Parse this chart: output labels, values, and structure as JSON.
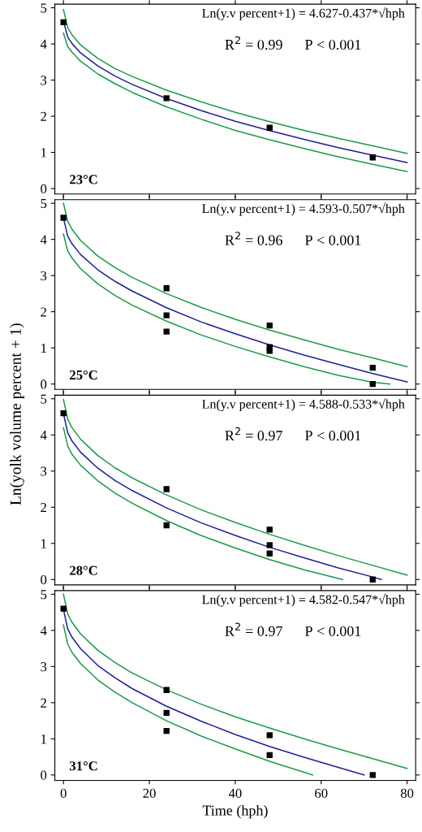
{
  "chart_data": [
    {
      "type": "line",
      "xlim": [
        -2,
        82
      ],
      "ylim": [
        -0.15,
        5.1
      ],
      "xticks": [
        0,
        20,
        40,
        60,
        80
      ],
      "yticks": [
        0,
        1,
        2,
        3,
        4,
        5
      ],
      "tick_labels": "y",
      "grid": false,
      "legend": false,
      "line_style": "solid",
      "marker": "none",
      "annotations": [
        "Ln(y.v percent+1) = 4.627-0.437*√hph",
        "R$^{2}$ = 0.99      P < 0.001",
        "23°C"
      ],
      "series": [
        {
          "type": "scatter",
          "marker": "square",
          "color": "#000000",
          "x": [
            0,
            24,
            48,
            72
          ],
          "values": [
            4.6,
            2.5,
            1.68,
            0.86
          ]
        },
        {
          "color": "#1a9a4a",
          "x": [
            0,
            1,
            2,
            4,
            8,
            12,
            16,
            24,
            32,
            40,
            48,
            56,
            64,
            72,
            80
          ],
          "values": [
            4.95,
            4.45,
            4.25,
            3.97,
            3.6,
            3.32,
            3.1,
            2.72,
            2.4,
            2.11,
            1.85,
            1.61,
            1.39,
            1.18,
            0.97
          ]
        },
        {
          "color": "#1a9a4a",
          "x": [
            0,
            1,
            2,
            4,
            8,
            12,
            16,
            24,
            32,
            40,
            48,
            56,
            64,
            72,
            80
          ],
          "values": [
            4.3,
            3.93,
            3.77,
            3.52,
            3.17,
            2.9,
            2.66,
            2.26,
            1.92,
            1.61,
            1.35,
            1.11,
            0.88,
            0.67,
            0.47
          ]
        },
        {
          "color": "#1f1f9a",
          "x": [
            0,
            1,
            2,
            4,
            8,
            12,
            16,
            24,
            32,
            40,
            48,
            56,
            64,
            72,
            80
          ],
          "values": [
            4.63,
            4.19,
            4.01,
            3.75,
            3.39,
            3.11,
            2.88,
            2.49,
            2.16,
            1.86,
            1.6,
            1.36,
            1.13,
            0.92,
            0.72
          ]
        }
      ]
    },
    {
      "type": "line",
      "xlim": [
        -2,
        82
      ],
      "ylim": [
        -0.15,
        5.1
      ],
      "xticks": [
        0,
        20,
        40,
        60,
        80
      ],
      "yticks": [
        0,
        1,
        2,
        3,
        4,
        5
      ],
      "tick_labels": "y",
      "grid": false,
      "legend": false,
      "line_style": "solid",
      "marker": "none",
      "annotations": [
        "Ln(y.v percent+1) = 4.593-0.507*√hph",
        "R$^{2}$ = 0.96      P < 0.001",
        "25°C"
      ],
      "series": [
        {
          "type": "scatter",
          "marker": "square",
          "color": "#000000",
          "x": [
            0,
            24,
            24,
            24,
            48,
            48,
            48,
            72,
            72
          ],
          "values": [
            4.6,
            2.65,
            1.9,
            1.45,
            1.62,
            1.02,
            0.92,
            0.45,
            0.0
          ]
        },
        {
          "color": "#1a9a4a",
          "x": [
            0,
            1,
            2,
            4,
            8,
            12,
            16,
            24,
            32,
            40,
            48,
            56,
            64,
            72,
            80
          ],
          "values": [
            5.0,
            4.5,
            4.28,
            3.97,
            3.54,
            3.22,
            2.95,
            2.5,
            2.12,
            1.79,
            1.49,
            1.22,
            0.96,
            0.72,
            0.48
          ]
        },
        {
          "color": "#1a9a4a",
          "x": [
            0,
            1,
            2,
            4,
            8,
            12,
            16,
            24,
            32,
            40,
            48,
            56,
            64,
            72,
            76
          ],
          "values": [
            4.15,
            3.68,
            3.48,
            3.19,
            2.77,
            2.45,
            2.18,
            1.74,
            1.36,
            1.04,
            0.75,
            0.48,
            0.24,
            0.05,
            0.0
          ]
        },
        {
          "color": "#1f1f9a",
          "x": [
            0,
            1,
            2,
            4,
            8,
            12,
            16,
            24,
            32,
            40,
            48,
            56,
            64,
            72,
            80
          ],
          "values": [
            4.59,
            4.09,
            3.88,
            3.58,
            3.16,
            2.84,
            2.57,
            2.11,
            1.72,
            1.39,
            1.08,
            0.8,
            0.54,
            0.29,
            0.06
          ]
        }
      ]
    },
    {
      "type": "line",
      "xlim": [
        -2,
        82
      ],
      "ylim": [
        -0.15,
        5.1
      ],
      "xticks": [
        0,
        20,
        40,
        60,
        80
      ],
      "yticks": [
        0,
        1,
        2,
        3,
        4,
        5
      ],
      "tick_labels": "y",
      "grid": false,
      "legend": false,
      "line_style": "solid",
      "marker": "none",
      "ylabel": "Ln(yolk volume percent + 1)",
      "annotations": [
        "Ln(y.v percent+1) = 4.588-0.533*√hph",
        "R$^{2}$ = 0.97      P < 0.001",
        "28°C"
      ],
      "series": [
        {
          "type": "scatter",
          "marker": "square",
          "color": "#000000",
          "x": [
            0,
            24,
            24,
            48,
            48,
            48,
            72
          ],
          "values": [
            4.6,
            2.5,
            1.5,
            1.38,
            0.95,
            0.72,
            0.0
          ]
        },
        {
          "color": "#1a9a4a",
          "x": [
            0,
            1,
            2,
            4,
            8,
            12,
            16,
            24,
            32,
            40,
            48,
            56,
            64,
            72,
            80
          ],
          "values": [
            4.98,
            4.43,
            4.2,
            3.88,
            3.43,
            3.09,
            2.81,
            2.34,
            1.93,
            1.58,
            1.25,
            0.95,
            0.66,
            0.39,
            0.12
          ]
        },
        {
          "color": "#1a9a4a",
          "x": [
            0,
            1,
            2,
            4,
            8,
            12,
            16,
            24,
            32,
            40,
            48,
            56,
            65
          ],
          "values": [
            4.2,
            3.69,
            3.46,
            3.16,
            2.73,
            2.39,
            2.11,
            1.63,
            1.22,
            0.87,
            0.55,
            0.27,
            0.0
          ]
        },
        {
          "color": "#1f1f9a",
          "x": [
            0,
            1,
            2,
            4,
            8,
            12,
            16,
            24,
            32,
            40,
            48,
            56,
            64,
            72,
            74
          ],
          "values": [
            4.59,
            4.06,
            3.83,
            3.52,
            3.08,
            2.74,
            2.46,
            1.98,
            1.57,
            1.22,
            0.89,
            0.6,
            0.32,
            0.07,
            0.0
          ]
        }
      ]
    },
    {
      "type": "line",
      "xlabel": "Time (hph)",
      "xlim": [
        -2,
        82
      ],
      "ylim": [
        -0.15,
        5.1
      ],
      "xticks": [
        0,
        20,
        40,
        60,
        80
      ],
      "yticks": [
        0,
        1,
        2,
        3,
        4,
        5
      ],
      "grid": false,
      "legend": false,
      "line_style": "solid",
      "marker": "none",
      "annotations": [
        "Ln(y.v percent+1) = 4.582-0.547*√hph",
        "R$^{2}$ = 0.97      P < 0.001",
        "31°C"
      ],
      "series": [
        {
          "type": "scatter",
          "marker": "square",
          "color": "#000000",
          "x": [
            0,
            24,
            24,
            24,
            48,
            48,
            72
          ],
          "values": [
            4.6,
            2.35,
            1.72,
            1.22,
            1.1,
            0.55,
            0.0
          ]
        },
        {
          "color": "#1a9a4a",
          "x": [
            0,
            1,
            2,
            4,
            8,
            12,
            16,
            24,
            32,
            40,
            48,
            56,
            64,
            72,
            80
          ],
          "values": [
            5.0,
            4.45,
            4.22,
            3.9,
            3.45,
            3.11,
            2.82,
            2.36,
            1.96,
            1.61,
            1.3,
            1.0,
            0.72,
            0.45,
            0.18
          ]
        },
        {
          "color": "#1a9a4a",
          "x": [
            0,
            1,
            2,
            4,
            8,
            12,
            16,
            24,
            32,
            40,
            48,
            58
          ],
          "values": [
            4.15,
            3.62,
            3.39,
            3.08,
            2.63,
            2.29,
            2.0,
            1.5,
            1.08,
            0.72,
            0.38,
            0.0
          ]
        },
        {
          "color": "#1f1f9a",
          "x": [
            0,
            1,
            2,
            4,
            8,
            12,
            16,
            24,
            32,
            40,
            48,
            56,
            64,
            70
          ],
          "values": [
            4.58,
            4.04,
            3.81,
            3.49,
            3.03,
            2.69,
            2.39,
            1.9,
            1.49,
            1.12,
            0.79,
            0.49,
            0.21,
            0.0
          ]
        }
      ]
    }
  ]
}
